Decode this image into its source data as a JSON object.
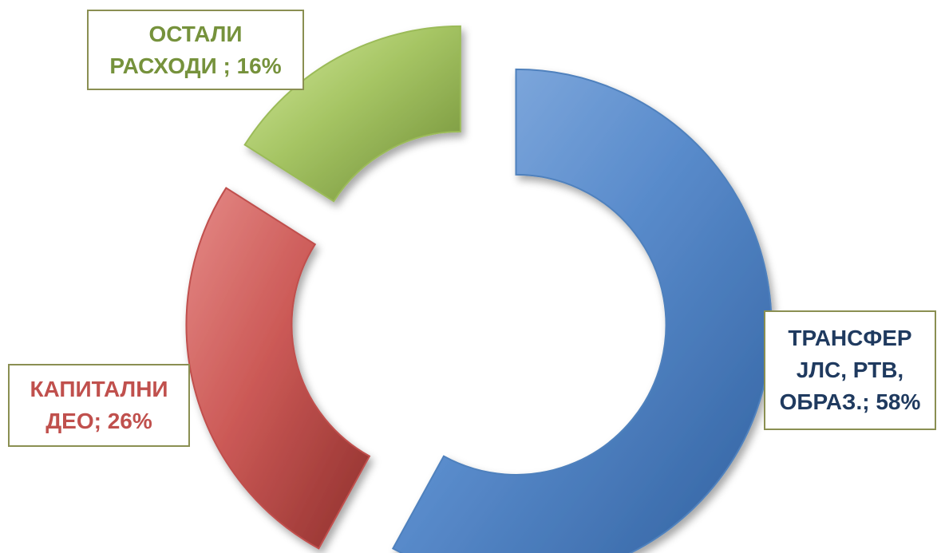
{
  "chart_data": {
    "type": "pie",
    "subtype": "exploded-donut",
    "title": "",
    "slices": [
      {
        "name": "ТРАНСФЕР ЈЛС, РТВ, ОБРАЗ.",
        "value": 58,
        "color": "#4f81bd",
        "label_lines": [
          "ТРАНСФЕР",
          "ЈЛС, РТВ,",
          "ОБРАЗ.; 58%"
        ],
        "label_color": "#1f3a5f"
      },
      {
        "name": "КАПИТАЛНИ ДЕО",
        "value": 26,
        "color": "#c0504d",
        "label_lines": [
          "КАПИТАЛНИ",
          "ДЕО; 26%"
        ],
        "label_color": "#c0504d"
      },
      {
        "name": "ОСТАЛИ РАСХОДИ",
        "value": 16,
        "color": "#9bbb59",
        "label_lines": [
          "ОСТАЛИ",
          "РАСХОДИ ; 16%"
        ],
        "label_color": "#76923c"
      }
    ],
    "legend": "none"
  }
}
